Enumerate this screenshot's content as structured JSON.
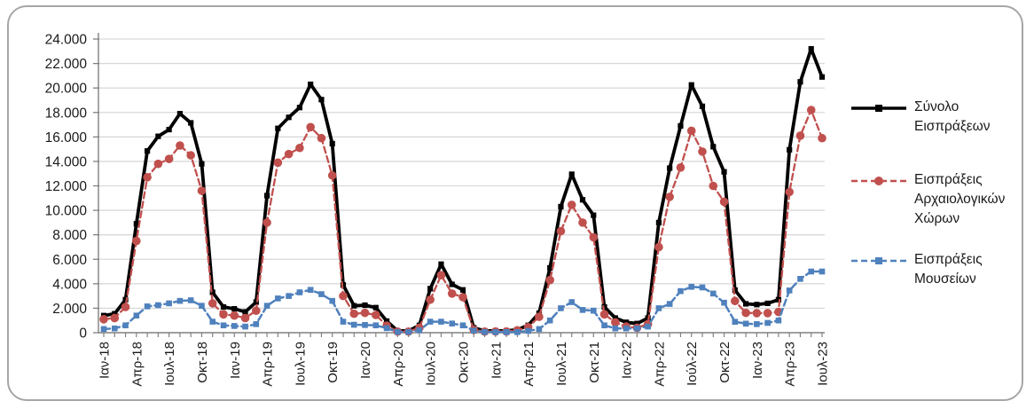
{
  "chart_data": {
    "type": "line",
    "title": "",
    "xlabel": "",
    "ylabel": "",
    "grid": "horizontal",
    "legend_position": "right",
    "ylim": [
      0,
      24000
    ],
    "y_tick_step": 2000,
    "y_tick_labels": [
      "0",
      "2.000",
      "4.000",
      "6.000",
      "8.000",
      "10.000",
      "12.000",
      "14.000",
      "16.000",
      "18.000",
      "20.000",
      "22.000",
      "24.000"
    ],
    "x_tick_labels": [
      "Ιαν-18",
      "Απρ-18",
      "Ιουλ-18",
      "Οκτ-18",
      "Ιαν-19",
      "Απρ-19",
      "Ιουλ-19",
      "Οκτ-19",
      "Ιαν-20",
      "Απρ-20",
      "Ιουλ-20",
      "Οκτ-20",
      "Ιαν-21",
      "Απρ-21",
      "Ιουλ-21",
      "Οκτ-21",
      "Ιαν-22",
      "Απρ-22",
      "Ιούλ-22",
      "Οκτ-22",
      "Ιαν-23",
      "Απρ-23",
      "Ιουλ-23"
    ],
    "x_label_every_n_months": 3,
    "n_points": 67,
    "series": [
      {
        "name": "Σύνολο Εισπράξεων",
        "color": "#000000",
        "line_style": "solid",
        "marker": "square",
        "values": [
          1400,
          1550,
          2700,
          8900,
          14850,
          16050,
          16600,
          17900,
          17150,
          13800,
          3300,
          2100,
          1950,
          1700,
          2500,
          11200,
          16700,
          17600,
          18400,
          20300,
          19050,
          15450,
          3900,
          2200,
          2250,
          2050,
          950,
          150,
          150,
          600,
          3600,
          5600,
          3950,
          3500,
          400,
          150,
          150,
          150,
          250,
          600,
          1600,
          5300,
          10300,
          12950,
          10860,
          9600,
          2100,
          1200,
          850,
          750,
          1200,
          9000,
          13450,
          16900,
          20250,
          18500,
          15200,
          13150,
          3480,
          2360,
          2300,
          2400,
          2700,
          14950,
          20500,
          23200,
          20900
        ]
      },
      {
        "name": "Εισπράξεις Αρχαιολογικών Χώρων",
        "color": "#c0504d",
        "line_style": "dashed",
        "marker": "circle",
        "values": [
          1100,
          1200,
          2100,
          7500,
          12700,
          13800,
          14200,
          15300,
          14500,
          11600,
          2400,
          1500,
          1400,
          1200,
          1800,
          9000,
          13900,
          14600,
          15100,
          16800,
          15900,
          12850,
          3000,
          1550,
          1620,
          1450,
          580,
          90,
          90,
          400,
          2700,
          4700,
          3200,
          2900,
          230,
          90,
          100,
          100,
          200,
          450,
          1300,
          4300,
          8300,
          10450,
          9000,
          7800,
          1500,
          850,
          500,
          400,
          700,
          7000,
          11100,
          13500,
          16500,
          14800,
          12000,
          10700,
          2590,
          1620,
          1600,
          1600,
          1700,
          11500,
          16100,
          18200,
          15900
        ]
      },
      {
        "name": "Εισπράξεις Μουσείων",
        "color": "#4f81bd",
        "line_style": "dashed",
        "marker": "square",
        "values": [
          300,
          350,
          600,
          1400,
          2150,
          2250,
          2400,
          2600,
          2650,
          2200,
          900,
          600,
          550,
          500,
          700,
          2200,
          2800,
          3000,
          3300,
          3500,
          3150,
          2600,
          900,
          650,
          630,
          600,
          370,
          60,
          60,
          200,
          900,
          900,
          750,
          600,
          170,
          60,
          50,
          50,
          50,
          150,
          300,
          1000,
          2000,
          2500,
          1860,
          1800,
          600,
          350,
          350,
          350,
          500,
          2000,
          2350,
          3400,
          3750,
          3700,
          3200,
          2450,
          890,
          740,
          700,
          800,
          1000,
          3450,
          4400,
          5000,
          5000
        ]
      }
    ],
    "colors": {
      "gridline": "#d9d9d9",
      "axis": "#808080",
      "tick_label": "#1a1a1a",
      "frame_border": "#a6a6a6"
    }
  }
}
